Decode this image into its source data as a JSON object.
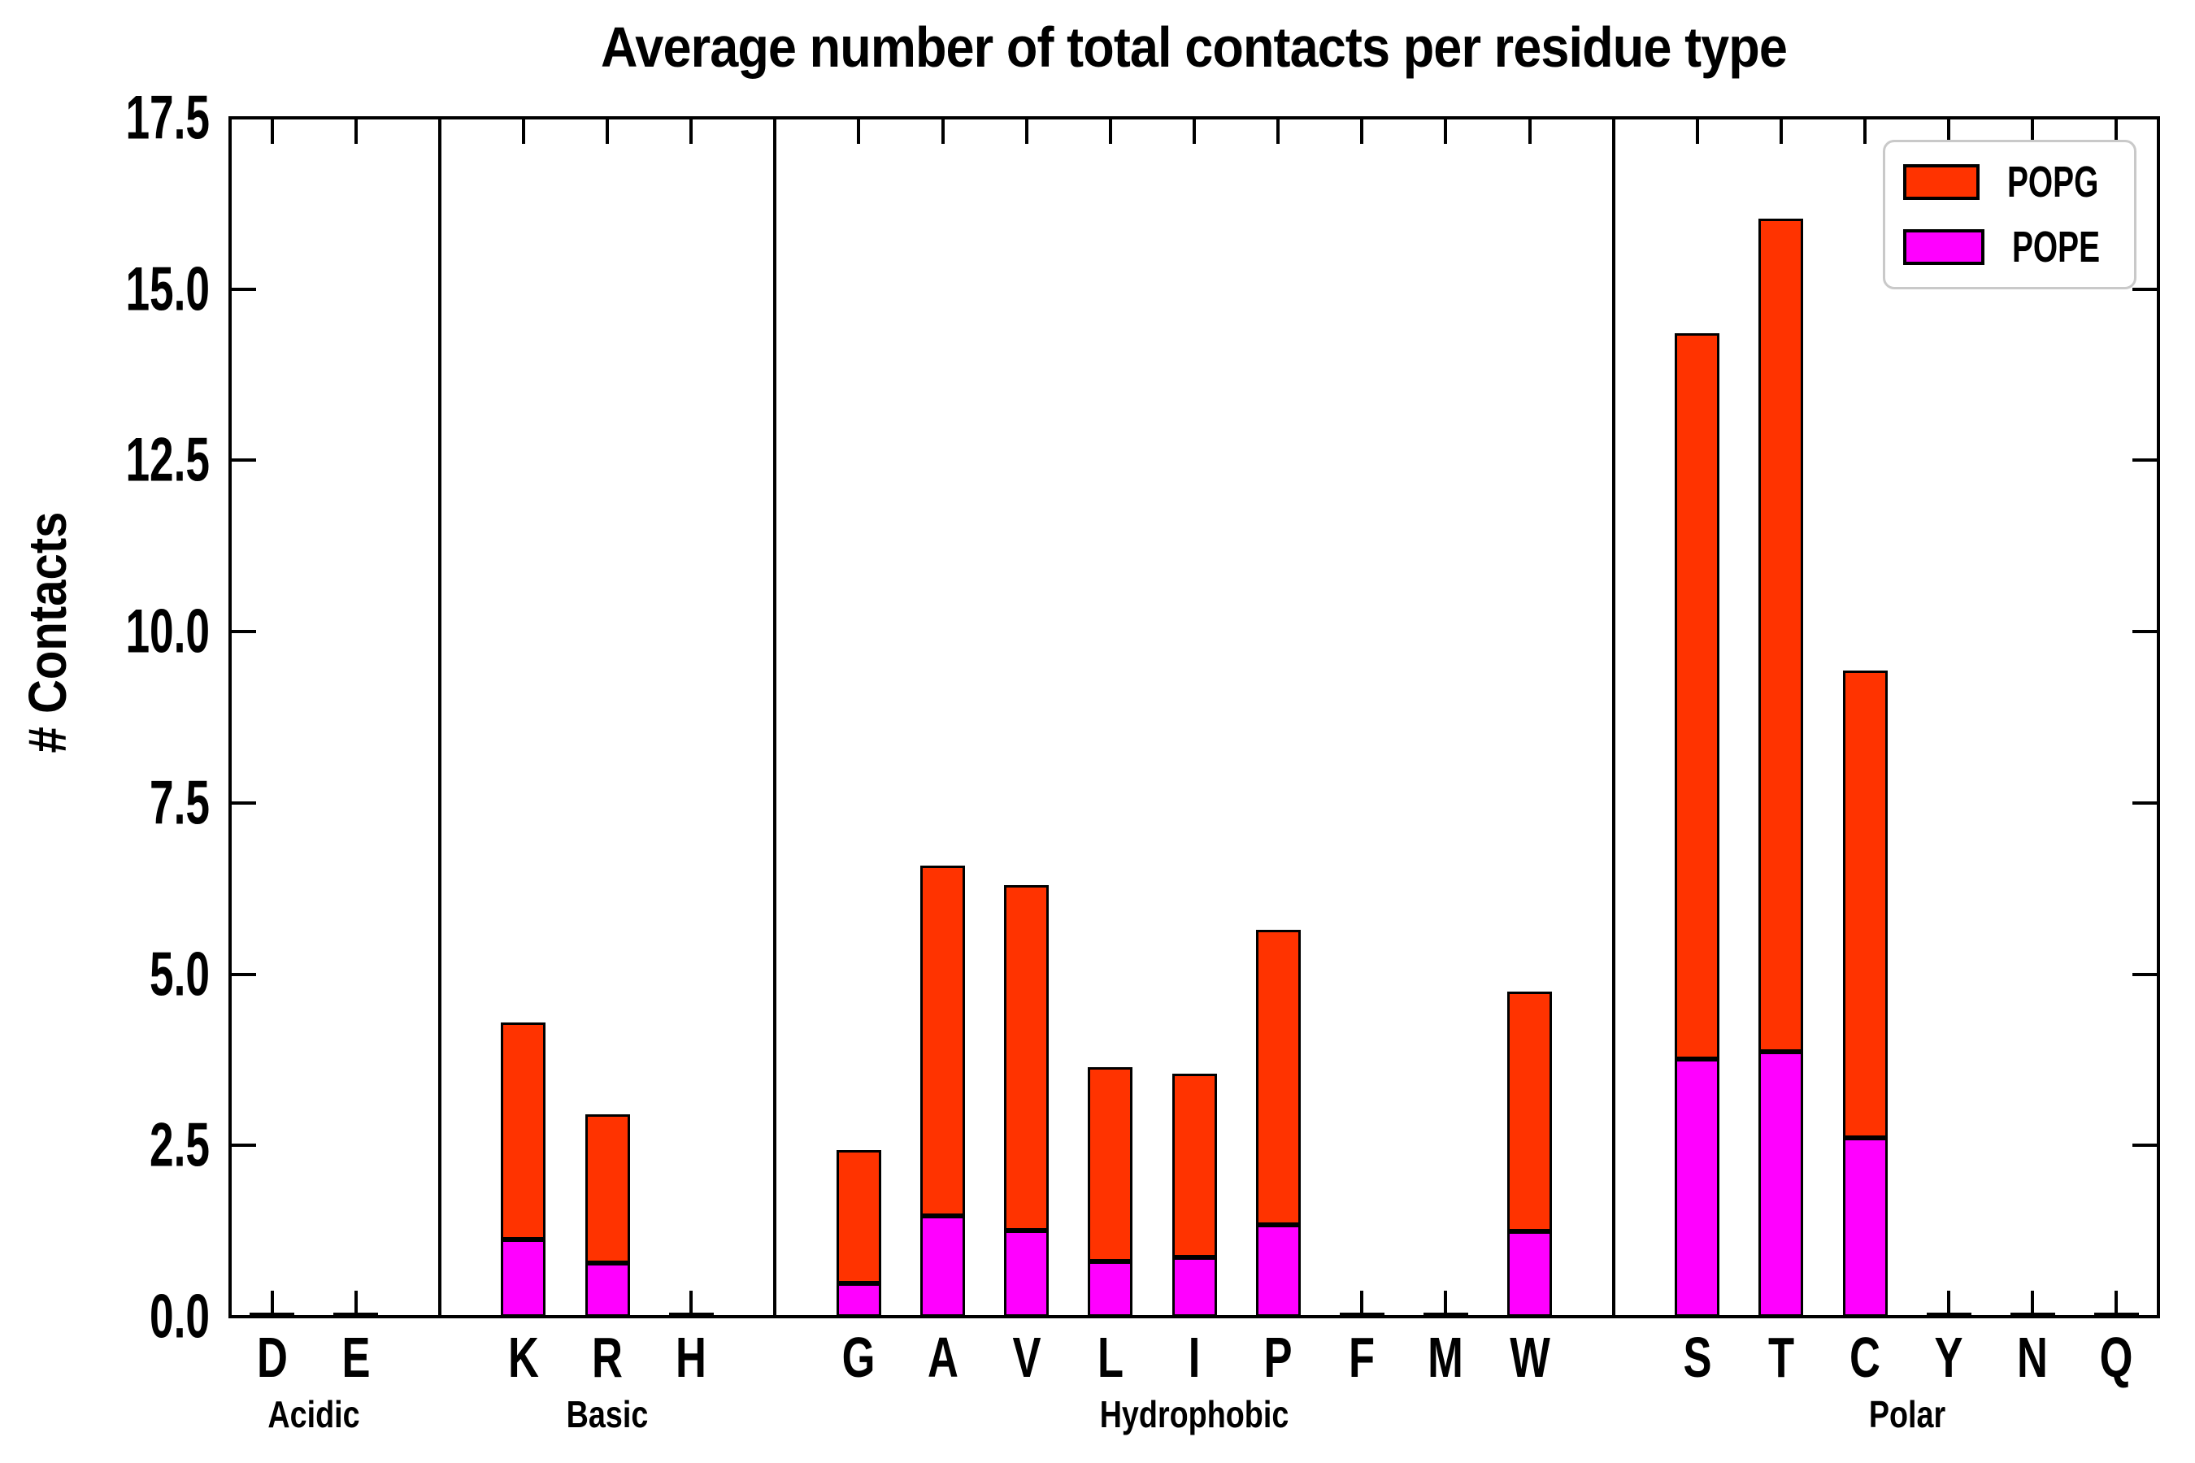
{
  "title": "Average number of total contacts per residue type",
  "y_axis_label": "# Contacts",
  "chart_data": {
    "type": "bar",
    "stacked": true,
    "title": "Average number of total contacts per residue type",
    "ylabel": "# Contacts",
    "xlabel": "",
    "ylim": [
      0,
      17.5
    ],
    "y_ticks": [
      "0.0",
      "2.5",
      "5.0",
      "7.5",
      "10.0",
      "12.5",
      "15.0",
      "17.5"
    ],
    "grid": false,
    "legend_position": "upper right",
    "categories": [
      "D",
      "E",
      "K",
      "R",
      "H",
      "G",
      "A",
      "V",
      "L",
      "I",
      "P",
      "F",
      "M",
      "W",
      "S",
      "T",
      "C",
      "Y",
      "N",
      "Q"
    ],
    "groups": [
      {
        "label": "Acidic",
        "residues": [
          "D",
          "E"
        ]
      },
      {
        "label": "Basic",
        "residues": [
          "K",
          "R",
          "H"
        ]
      },
      {
        "label": "Hydrophobic",
        "residues": [
          "G",
          "A",
          "V",
          "L",
          "I",
          "P",
          "F",
          "M",
          "W"
        ]
      },
      {
        "label": "Polar",
        "residues": [
          "S",
          "T",
          "C",
          "Y",
          "N",
          "Q"
        ]
      }
    ],
    "series": [
      {
        "name": "POPG",
        "color": "#ff3300",
        "stack_order": "top",
        "values": [
          0.01,
          0.01,
          3.17,
          2.17,
          0.01,
          1.94,
          5.12,
          5.04,
          2.83,
          2.68,
          4.31,
          0.01,
          0.01,
          3.5,
          10.6,
          12.16,
          6.82,
          0.01,
          0.01,
          0.01
        ]
      },
      {
        "name": "POPE",
        "color": "#ff00ff",
        "stack_order": "bottom",
        "values": [
          0.01,
          0.01,
          1.13,
          0.78,
          0.01,
          0.49,
          1.47,
          1.26,
          0.81,
          0.87,
          1.34,
          0.01,
          0.01,
          1.24,
          3.76,
          3.87,
          2.61,
          0.01,
          0.01,
          0.01
        ]
      }
    ],
    "totals": [
      0.02,
      0.02,
      4.3,
      2.95,
      0.02,
      2.43,
      6.59,
      6.3,
      3.64,
      3.55,
      5.65,
      0.02,
      0.02,
      4.74,
      14.36,
      16.03,
      9.43,
      0.02,
      0.02,
      0.02
    ]
  }
}
